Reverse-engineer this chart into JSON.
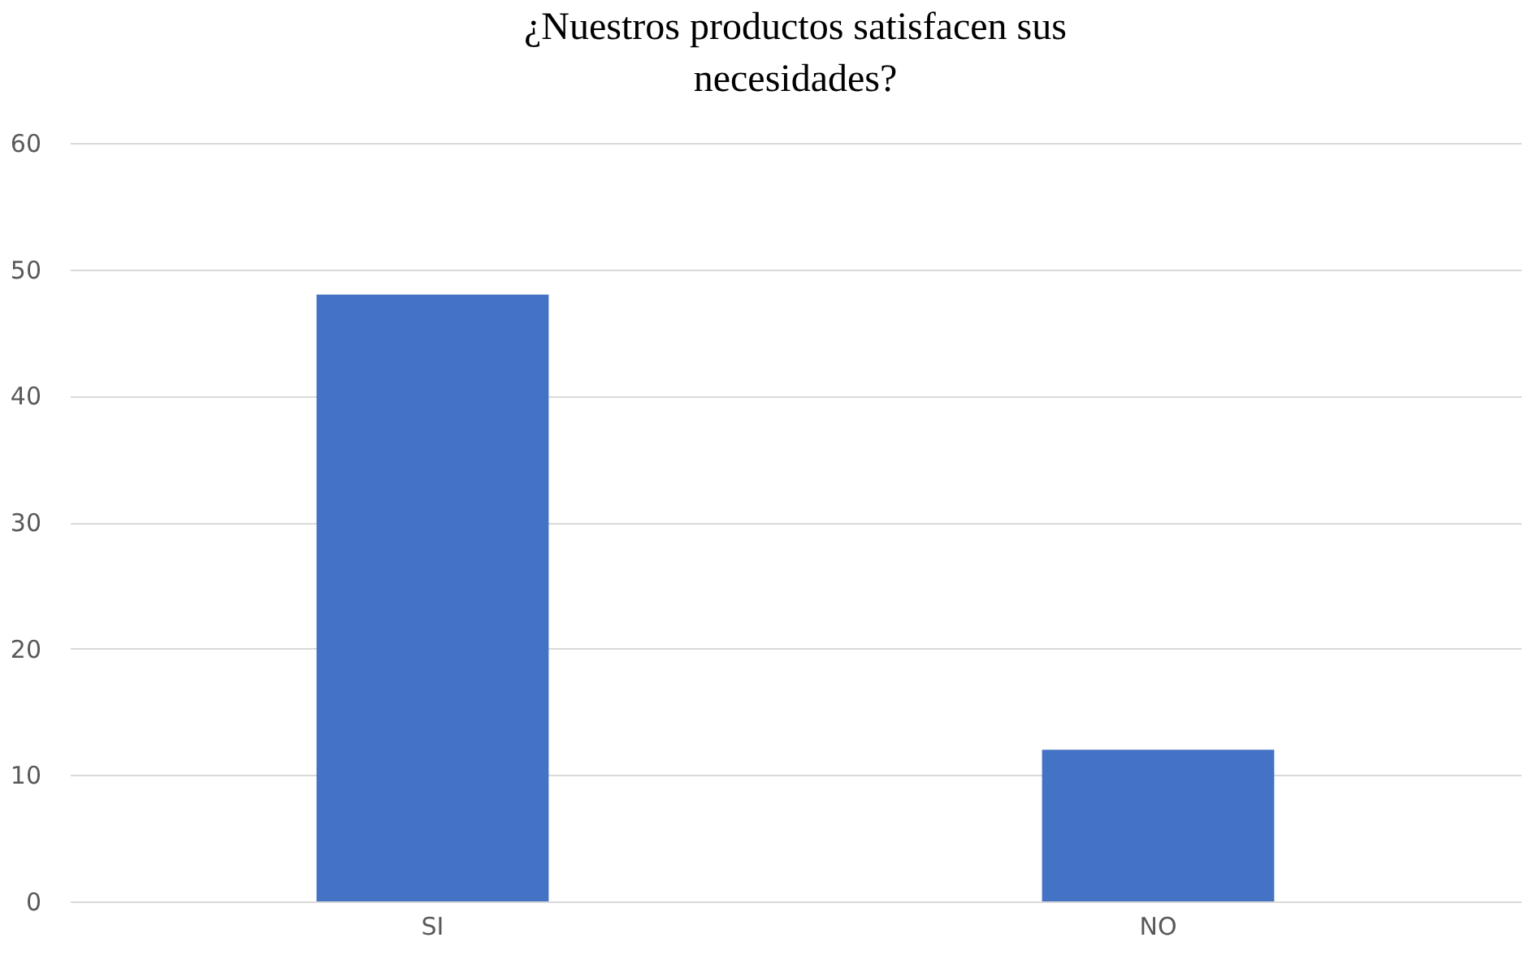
{
  "chart_data": {
    "type": "bar",
    "title": "¿Nuestros productos satisfacen sus necesidades?",
    "categories": [
      "SI",
      "NO"
    ],
    "values": [
      48,
      12
    ],
    "color": "#4472c4",
    "ylim": [
      0,
      60
    ],
    "yticks": [
      0,
      10,
      20,
      30,
      40,
      50,
      60
    ],
    "grid": "y"
  }
}
